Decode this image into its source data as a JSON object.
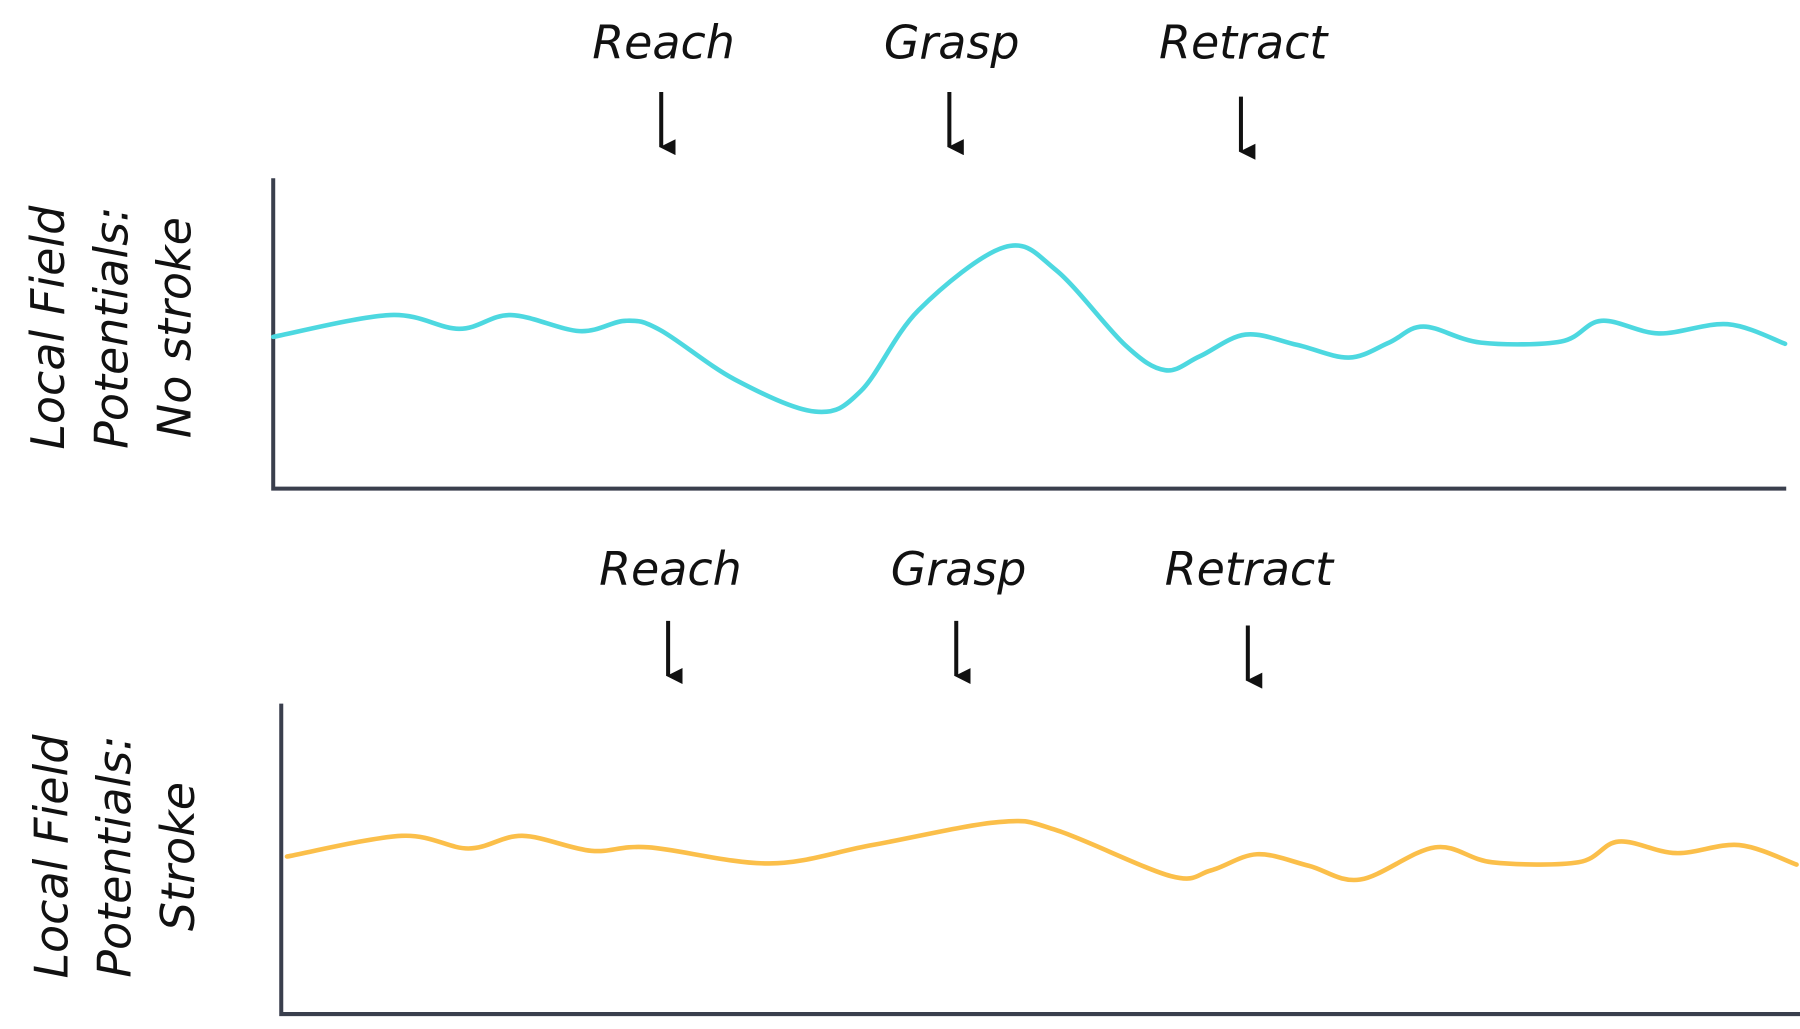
{
  "panels": [
    {
      "ylabel": [
        "Local Field",
        "Potentials:",
        "No stroke"
      ],
      "events": [
        "Reach",
        "Grasp",
        "Retract"
      ]
    },
    {
      "ylabel": [
        "Local Field",
        "Potentials:",
        "Stroke"
      ],
      "events": [
        "Reach",
        "Grasp",
        "Retract"
      ]
    }
  ]
}
